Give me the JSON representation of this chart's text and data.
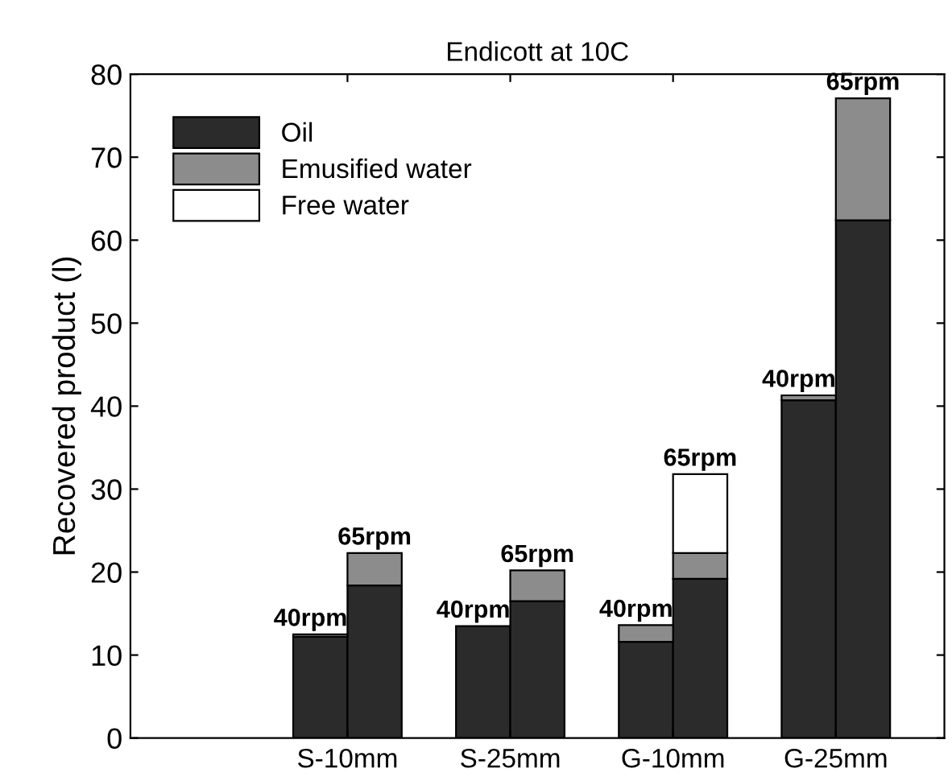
{
  "chart_data": {
    "type": "bar",
    "title": "Endicott at 10C",
    "ylabel": "Recovered product (l)",
    "categories": [
      null,
      null,
      null,
      null,
      null,
      null,
      null,
      null,
      null,
      null,
      null,
      null,
      null,
      null,
      null
    ],
    "stacked": true,
    "series": [
      {
        "name": "Oil",
        "color": "#2b2b2b",
        "values": [
          null,
          null,
          null,
          12.2,
          18.4,
          null,
          13.5,
          16.5,
          null,
          11.6,
          19.2,
          null,
          40.7,
          62.4,
          null
        ]
      },
      {
        "name": "Emusified water",
        "color": "#8c8c8c",
        "values": [
          null,
          null,
          null,
          0.3,
          3.9,
          null,
          null,
          3.7,
          null,
          2.0,
          3.1,
          null,
          0.6,
          14.7,
          null
        ]
      },
      {
        "name": "Free water",
        "color": "#ffffff",
        "values": [
          null,
          null,
          null,
          null,
          null,
          null,
          null,
          null,
          null,
          null,
          9.5,
          null,
          null,
          null,
          null
        ]
      }
    ],
    "annotations": [
      {
        "text": "40rpm",
        "y": 12.5
      },
      {
        "text": "65rpm",
        "y": 22.3
      },
      {
        "text": "40rpm",
        "y": 13.5
      },
      {
        "text": "65rpm",
        "y": 20.2
      },
      {
        "text": "40rpm",
        "y": 13.6
      },
      {
        "text": "65rpm",
        "y": 31.8
      },
      {
        "text": "40rpm",
        "y": 41.3
      },
      {
        "text": "65rpm",
        "y": 77.1
      },
      "S-10mm",
      "S-25mm",
      "G-10mm",
      "G-25mm"
    ],
    "ylim": [
      0,
      80
    ],
    "yticks": [
      0,
      10,
      20,
      30,
      40,
      50,
      60,
      70,
      80
    ],
    "legend": "top left",
    "grid": false
  }
}
